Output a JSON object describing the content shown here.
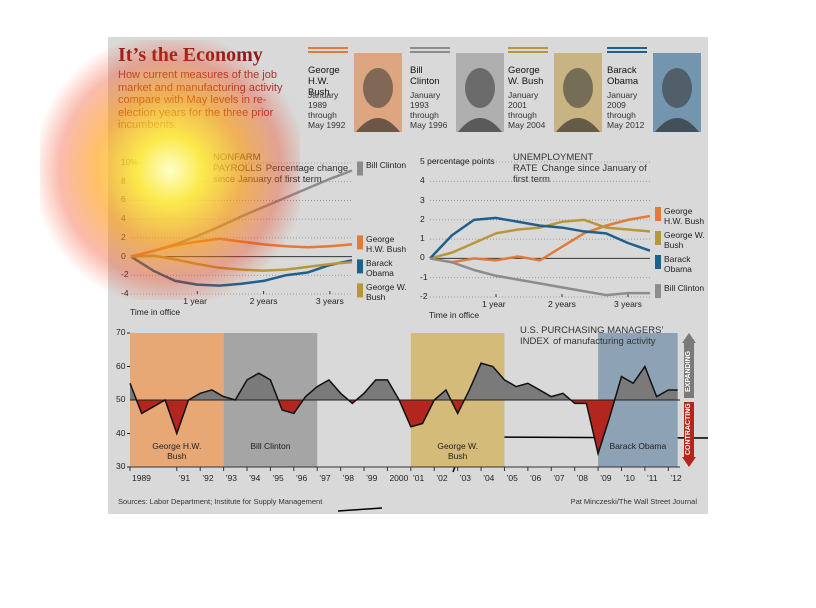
{
  "header": {
    "title": "It’s the Economy",
    "subtitle": "How current measures of the job market and manufacturing activity compare with May levels in re-election years for the three prior incumbents."
  },
  "presidents": [
    {
      "name": "George H.W. Bush",
      "term": "January 1989 through May 1992",
      "color": "#e07b39"
    },
    {
      "name": "Bill Clinton",
      "term": "January 1993 through May 1996",
      "color": "#8c8c8c"
    },
    {
      "name": "George W. Bush",
      "term": "January 2001 through May 2004",
      "color": "#b8963a"
    },
    {
      "name": "Barack Obama",
      "term": "January 2009 through May 2012",
      "color": "#1f5f8b"
    }
  ],
  "chart_data": [
    {
      "type": "line",
      "title": "NONFARM PAYROLLS",
      "subtitle": "Percentage change since January of first term",
      "x_label": "Time in office",
      "x": [
        0,
        4,
        8,
        12,
        16,
        20,
        24,
        28,
        32,
        36,
        40
      ],
      "xlim": [
        0,
        40
      ],
      "xticks": [
        {
          "value": 12,
          "label": "1 year"
        },
        {
          "value": 24,
          "label": "2 years"
        },
        {
          "value": 36,
          "label": "3 years"
        }
      ],
      "ylim": [
        -4,
        10
      ],
      "yticks": [
        {
          "value": 10,
          "label": "10%"
        },
        8,
        6,
        4,
        2,
        0,
        -2,
        -4
      ],
      "grid": true,
      "series": [
        {
          "name": "Bill Clinton",
          "color": "#8c8c8c",
          "values": [
            0,
            0.6,
            1.3,
            2.2,
            3.2,
            4.3,
            5.3,
            6.3,
            7.3,
            8.3,
            9.2
          ]
        },
        {
          "name": "George H.W. Bush",
          "color": "#e07b39",
          "values": [
            0,
            0.6,
            1.2,
            1.6,
            1.9,
            1.6,
            1.3,
            1.1,
            1.0,
            1.1,
            1.3
          ]
        },
        {
          "name": "Barack Obama",
          "color": "#1f5f8b",
          "values": [
            0,
            -1.5,
            -2.6,
            -3.0,
            -3.1,
            -2.9,
            -2.6,
            -2.0,
            -1.7,
            -0.9,
            -0.4
          ]
        },
        {
          "name": "George W. Bush",
          "color": "#b8963a",
          "values": [
            0,
            0.1,
            -0.3,
            -0.8,
            -1.2,
            -1.4,
            -1.5,
            -1.4,
            -1.1,
            -0.8,
            -0.6
          ]
        }
      ]
    },
    {
      "type": "line",
      "title": "UNEMPLOYMENT RATE",
      "subtitle": "Change since January of first term",
      "x_label": "Time in office",
      "x": [
        0,
        4,
        8,
        12,
        16,
        20,
        24,
        28,
        32,
        36,
        40
      ],
      "xlim": [
        0,
        40
      ],
      "xticks": [
        {
          "value": 12,
          "label": "1 year"
        },
        {
          "value": 24,
          "label": "2 years"
        },
        {
          "value": 36,
          "label": "3 years"
        }
      ],
      "ylim": [
        -2,
        5
      ],
      "yticks": [
        {
          "value": 5,
          "label": "5 percentage points"
        },
        4,
        3,
        2,
        1,
        0,
        -1,
        -2
      ],
      "grid": true,
      "series": [
        {
          "name": "George H.W. Bush",
          "color": "#e07b39",
          "values": [
            0,
            -0.2,
            0,
            -0.1,
            0.1,
            -0.1,
            0.6,
            1.3,
            1.7,
            2.0,
            2.2
          ]
        },
        {
          "name": "George W. Bush",
          "color": "#b8963a",
          "values": [
            0,
            0.3,
            0.8,
            1.3,
            1.5,
            1.6,
            1.9,
            2.0,
            1.6,
            1.5,
            1.4
          ]
        },
        {
          "name": "Barack Obama",
          "color": "#1f5f8b",
          "values": [
            0,
            1.2,
            2.0,
            2.1,
            1.9,
            1.7,
            1.6,
            1.4,
            1.3,
            0.8,
            0.4
          ]
        },
        {
          "name": "Bill Clinton",
          "color": "#8c8c8c",
          "values": [
            0,
            -0.2,
            -0.6,
            -0.9,
            -1.1,
            -1.3,
            -1.5,
            -1.7,
            -1.9,
            -1.8,
            -1.8
          ]
        }
      ]
    },
    {
      "type": "area",
      "title": "U.S. PURCHASING MANAGERS’ INDEX",
      "subtitle": "of manufacturing activity",
      "x": [
        1989,
        1989.5,
        1990,
        1990.5,
        1991,
        1991.5,
        1992,
        1992.5,
        1993,
        1993.5,
        1994,
        1994.5,
        1995,
        1995.5,
        1996,
        1996.5,
        1997,
        1997.5,
        1998,
        1998.5,
        1999,
        1999.5,
        2000,
        2000.5,
        2001,
        2001.5,
        2002,
        2002.5,
        2003,
        2003.5,
        2004,
        2004.5,
        2005,
        2005.5,
        2006,
        2006.5,
        2007,
        2007.5,
        2008,
        2008.5,
        2009,
        2009.5,
        2010,
        2010.5,
        2011,
        2011.5,
        2012,
        2012.4
      ],
      "values": [
        55,
        46,
        48,
        50,
        40,
        50,
        52,
        53,
        51,
        50,
        56,
        58,
        56,
        47,
        46,
        51,
        54,
        56,
        52,
        49,
        52,
        56,
        56,
        50,
        42,
        43,
        50,
        53,
        46,
        53,
        61,
        60,
        56,
        54,
        55,
        53,
        51,
        52,
        49,
        49,
        34,
        45,
        57,
        55,
        60,
        51,
        53,
        53
      ],
      "xlim": [
        1989,
        2012.5
      ],
      "xticks": [
        1989,
        {
          "value": 1991,
          "label": "’91"
        },
        {
          "value": 1992,
          "label": "’92"
        },
        {
          "value": 1993,
          "label": "’93"
        },
        {
          "value": 1994,
          "label": "’94"
        },
        {
          "value": 1995,
          "label": "’95"
        },
        {
          "value": 1996,
          "label": "’96"
        },
        {
          "value": 1997,
          "label": "’97"
        },
        {
          "value": 1998,
          "label": "’98"
        },
        {
          "value": 1999,
          "label": "’99"
        },
        2000,
        {
          "value": 2001,
          "label": "’01"
        },
        {
          "value": 2002,
          "label": "’02"
        },
        {
          "value": 2003,
          "label": "’03"
        },
        {
          "value": 2004,
          "label": "’04"
        },
        {
          "value": 2005,
          "label": "’05"
        },
        {
          "value": 2006,
          "label": "’06"
        },
        {
          "value": 2007,
          "label": "’07"
        },
        {
          "value": 2008,
          "label": "’08"
        },
        {
          "value": 2009,
          "label": "’09"
        },
        {
          "value": 2010,
          "label": "’10"
        },
        {
          "value": 2011,
          "label": "’11"
        },
        {
          "value": 2012,
          "label": "’12"
        }
      ],
      "ylim": [
        30,
        70
      ],
      "yticks": [
        70,
        60,
        50,
        40,
        30
      ],
      "threshold": 50,
      "color_above": "#7a7a7a",
      "color_below": "#b3261e",
      "expanding_label": "EXPANDING",
      "contracting_label": "CONTRACTING",
      "terms": [
        {
          "name": "George H.W. Bush",
          "start": 1989,
          "end": 1993,
          "color": "#e8a876"
        },
        {
          "name": "Bill Clinton",
          "start": 1993,
          "end": 1997,
          "color": "#a5a5a5"
        },
        {
          "name": "George W. Bush",
          "start": 2001,
          "end": 2005,
          "color": "#d4bb7a"
        },
        {
          "name": "Barack Obama",
          "start": 2009,
          "end": 2012.4,
          "color": "#8da3b5"
        }
      ]
    }
  ],
  "footer": {
    "sources": "Sources: Labor Department; Institute for Supply Management",
    "credit": "Pat Minczeski/The Wall Street Journal"
  }
}
